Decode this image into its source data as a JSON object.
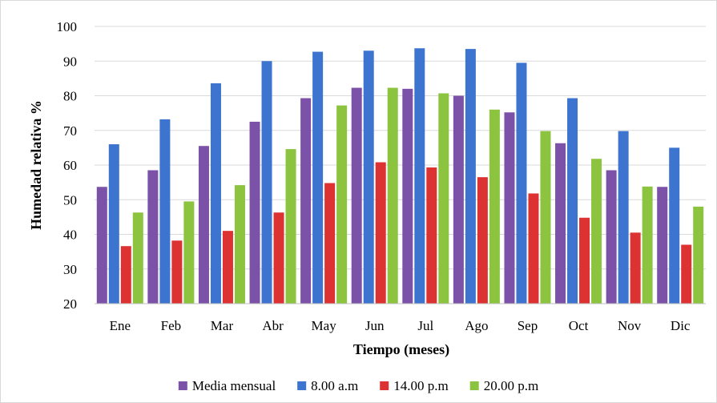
{
  "chart_data": {
    "type": "bar",
    "title": "",
    "xlabel": "Tiempo (meses)",
    "ylabel": "Humedad relativa %",
    "ylim": [
      20,
      100
    ],
    "yticks": [
      20,
      30,
      40,
      50,
      60,
      70,
      80,
      90,
      100
    ],
    "grid": true,
    "legend_position": "bottom",
    "categories": [
      "Ene",
      "Feb",
      "Mar",
      "Abr",
      "May",
      "Jun",
      "Jul",
      "Ago",
      "Sep",
      "Oct",
      "Nov",
      "Dic"
    ],
    "series": [
      {
        "name": "Media mensual",
        "color": "#7b52a8",
        "values": [
          53.7,
          58.5,
          65.5,
          72.5,
          79.3,
          82.3,
          82.0,
          80.0,
          75.2,
          66.3,
          58.5,
          53.7
        ]
      },
      {
        "name": "8.00 a.m",
        "color": "#3d74cf",
        "values": [
          66.0,
          73.2,
          83.6,
          90.0,
          92.7,
          93.0,
          93.7,
          93.5,
          89.5,
          79.3,
          69.8,
          65.0
        ]
      },
      {
        "name": "14.00 p.m",
        "color": "#dc3232",
        "values": [
          36.6,
          38.2,
          41.0,
          46.3,
          54.8,
          60.8,
          59.3,
          56.5,
          51.8,
          44.8,
          40.5,
          37.0
        ]
      },
      {
        "name": "20.00 p.m",
        "color": "#8cc440",
        "values": [
          46.3,
          49.5,
          54.2,
          64.6,
          77.2,
          82.3,
          80.7,
          76.0,
          69.8,
          61.8,
          53.8,
          48.0
        ]
      }
    ]
  }
}
